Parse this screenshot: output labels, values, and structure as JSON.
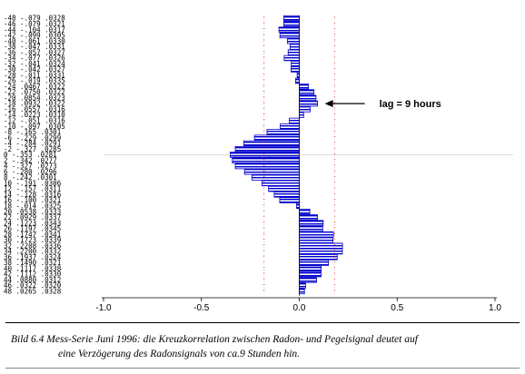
{
  "chart_data": {
    "type": "bar",
    "orientation": "horizontal",
    "x_ticks": [
      "-1.0",
      "-0.5",
      "0.0",
      "0.5",
      "1.0"
    ],
    "xlim": [
      -1.0,
      1.0
    ],
    "rows": [
      {
        "label": "-48  -.079  .0328",
        "lag": -48,
        "r": -0.079
      },
      {
        "label": "-46  -.079  .0321",
        "lag": -46,
        "r": -0.079
      },
      {
        "label": "-44  -.104  .0317",
        "lag": -44,
        "r": -0.104
      },
      {
        "label": "-42  -.099  .0305",
        "lag": -42,
        "r": -0.099
      },
      {
        "label": "-40  -.061  .0330",
        "lag": -40,
        "r": -0.061
      },
      {
        "label": "-38  -.047  .0331",
        "lag": -38,
        "r": -0.047
      },
      {
        "label": "-36  -.057  .0327",
        "lag": -36,
        "r": -0.057
      },
      {
        "label": "-34  -.077  .0326",
        "lag": -34,
        "r": -0.077
      },
      {
        "label": "-32  -.041  .0324",
        "lag": -32,
        "r": -0.041
      },
      {
        "label": "-30  -.042  .0327",
        "lag": -30,
        "r": -0.042
      },
      {
        "label": "-28  -.011  .0331",
        "lag": -28,
        "r": -0.011
      },
      {
        "label": "-26  -.019  .0335",
        "lag": -26,
        "r": -0.019
      },
      {
        "label": "-24  .0467  .0322",
        "lag": -24,
        "r": 0.0467
      },
      {
        "label": "-22  .0750  .0322",
        "lag": -22,
        "r": 0.075
      },
      {
        "label": "-20  .0854  .0323",
        "lag": -20,
        "r": 0.0854
      },
      {
        "label": "-18  .0932  .0322",
        "lag": -18,
        "r": 0.0932
      },
      {
        "label": "-16  .0557  .0316",
        "lag": -16,
        "r": 0.0557
      },
      {
        "label": "-14  .0223  .0310",
        "lag": -14,
        "r": 0.0223
      },
      {
        "label": "-12  -.051  .0316",
        "lag": -12,
        "r": -0.051
      },
      {
        "label": "-10  -.097  .0305",
        "lag": -10,
        "r": -0.097
      },
      {
        "label": " -8  -.165  .0301",
        "lag": -8,
        "r": -0.165
      },
      {
        "label": " -6  -.229  .0299",
        "lag": -6,
        "r": -0.229
      },
      {
        "label": " -4  -.284  .0291",
        "lag": -4,
        "r": -0.284
      },
      {
        "label": " -2  -.327  .0285",
        "lag": -2,
        "r": -0.327
      },
      {
        "label": "  0  -.353  .0281",
        "lag": 0,
        "r": -0.353
      },
      {
        "label": "  2  -.342  .0277",
        "lag": 2,
        "r": -0.342
      },
      {
        "label": "  4  -.327  .0273",
        "lag": 4,
        "r": -0.327
      },
      {
        "label": "  6  -.280  .0296",
        "lag": 6,
        "r": -0.28
      },
      {
        "label": "  8  -.242  .0301",
        "lag": 8,
        "r": -0.242
      },
      {
        "label": " 10  -.191  .0306",
        "lag": 10,
        "r": -0.191
      },
      {
        "label": " 12  -.157  .0311",
        "lag": 12,
        "r": -0.157
      },
      {
        "label": " 14  -.128  .0316",
        "lag": 14,
        "r": -0.128
      },
      {
        "label": " 16  -.100  .0321",
        "lag": 16,
        "r": -0.1
      },
      {
        "label": " 18  -.014  .0325",
        "lag": 18,
        "r": -0.014
      },
      {
        "label": " 20  .0538  .0333",
        "lag": 20,
        "r": 0.0538
      },
      {
        "label": " 22  .0929  .0337",
        "lag": 22,
        "r": 0.0929
      },
      {
        "label": " 24  .1223  .0343",
        "lag": 24,
        "r": 0.1223
      },
      {
        "label": " 26  .1197  .0345",
        "lag": 26,
        "r": 0.1197
      },
      {
        "label": " 28  .1747  .0341",
        "lag": 28,
        "r": 0.1747
      },
      {
        "label": " 30  .1723  .0339",
        "lag": 30,
        "r": 0.1723
      },
      {
        "label": " 32  .2208  .0336",
        "lag": 32,
        "r": 0.2208
      },
      {
        "label": " 34  .2200  .0332",
        "lag": 34,
        "r": 0.22
      },
      {
        "label": " 36  .1937  .0324",
        "lag": 36,
        "r": 0.1937
      },
      {
        "label": " 38  .1490  .0321",
        "lag": 38,
        "r": 0.149
      },
      {
        "label": " 40  .1117  .0338",
        "lag": 40,
        "r": 0.1117
      },
      {
        "label": " 42  .1112  .0330",
        "lag": 42,
        "r": 0.1112
      },
      {
        "label": " 44  .0880  .0312",
        "lag": 44,
        "r": 0.088
      },
      {
        "label": " 46  .0322  .0320",
        "lag": 46,
        "r": 0.0322
      },
      {
        "label": " 48  .0265  .0328",
        "lag": 48,
        "r": 0.0265
      }
    ],
    "confidence_band": 0.18,
    "annotation": "lag = 9 hours",
    "annotation_lag": -18,
    "bar_color": "#0000cc",
    "band_color": "#cc0000"
  },
  "caption": {
    "line1": "Bild 6.4  Mess-Serie Juni 1996: die Kreuzkorrelation zwischen Radon- und Pegelsignal deutet auf",
    "line2": "eine Verzögerung des Radonsignals von ca.9 Stunden hin."
  }
}
